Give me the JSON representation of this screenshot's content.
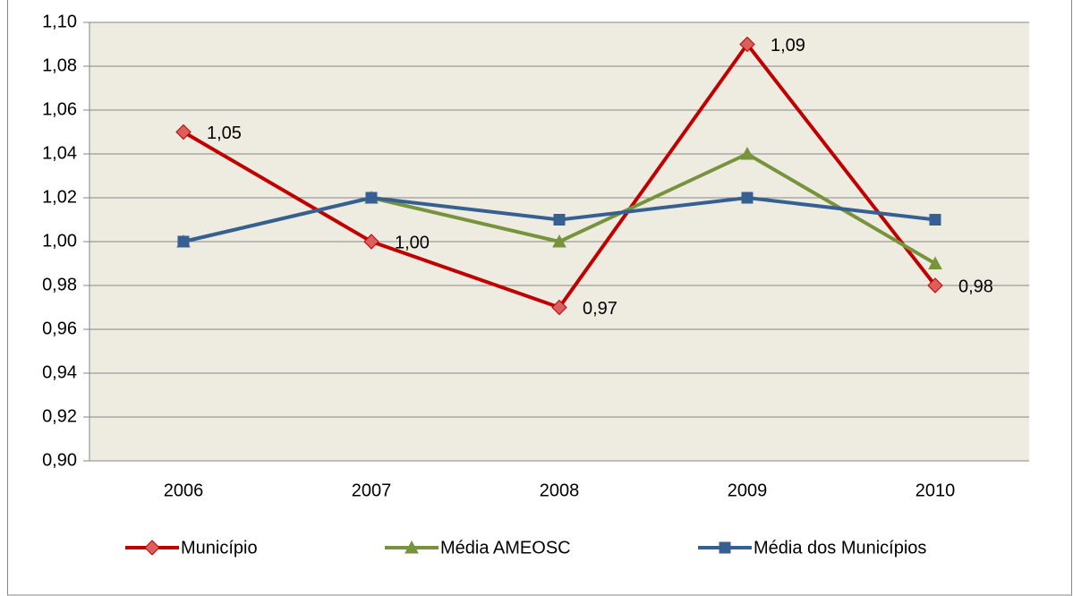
{
  "chart_data": {
    "type": "line",
    "categories": [
      "2006",
      "2007",
      "2008",
      "2009",
      "2010"
    ],
    "series": [
      {
        "name": "Município",
        "color": "#c00000",
        "marker": "diamond",
        "values": [
          1.05,
          1.0,
          0.97,
          1.09,
          0.98
        ],
        "value_labels": [
          "1,05",
          "1,00",
          "0,97",
          "1,09",
          "0,98"
        ]
      },
      {
        "name": "Média AMEOSC",
        "color": "#77933c",
        "marker": "triangle",
        "values": [
          1.0,
          1.02,
          1.0,
          1.04,
          0.99
        ]
      },
      {
        "name": "Média dos Municípios",
        "color": "#376092",
        "marker": "square",
        "values": [
          1.0,
          1.02,
          1.01,
          1.02,
          1.01
        ]
      }
    ],
    "ylim": [
      0.9,
      1.1
    ],
    "yticks": [
      {
        "value": 0.9,
        "label": "0,90"
      },
      {
        "value": 0.92,
        "label": "0,92"
      },
      {
        "value": 0.94,
        "label": "0,94"
      },
      {
        "value": 0.96,
        "label": "0,96"
      },
      {
        "value": 0.98,
        "label": "0,98"
      },
      {
        "value": 1.0,
        "label": "1,00"
      },
      {
        "value": 1.02,
        "label": "1,02"
      },
      {
        "value": 1.04,
        "label": "1,04"
      },
      {
        "value": 1.06,
        "label": "1,06"
      },
      {
        "value": 1.08,
        "label": "1,08"
      },
      {
        "value": 1.1,
        "label": "1,10"
      }
    ],
    "grid": true,
    "legend": "bottom"
  }
}
